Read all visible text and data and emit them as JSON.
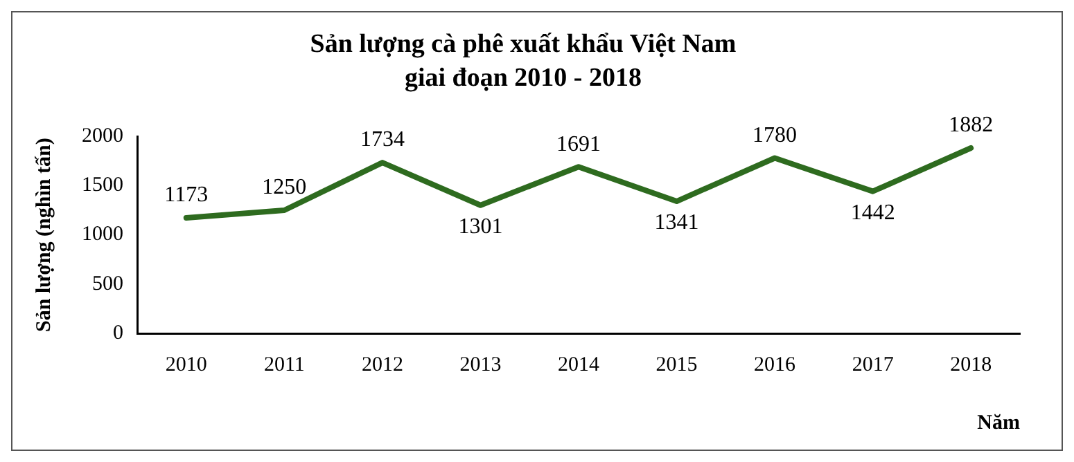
{
  "chart_data": {
    "type": "line",
    "title": "Sản lượng cà phê xuất khẩu Việt Nam",
    "subtitle": "giai đoạn 2010 - 2018",
    "xlabel": "Năm",
    "ylabel": "Sản lượng (nghìn tấn)",
    "categories": [
      "2010",
      "2011",
      "2012",
      "2013",
      "2014",
      "2015",
      "2016",
      "2017",
      "2018"
    ],
    "series": [
      {
        "color": "#2e6b1f",
        "values": [
          1173,
          1250,
          1734,
          1301,
          1691,
          1341,
          1780,
          1442,
          1882
        ]
      }
    ],
    "ylim": [
      0,
      2000
    ],
    "yticks": [
      0,
      500,
      1000,
      1500,
      2000
    ],
    "grid": false,
    "legend": false,
    "marker": "none",
    "line_style": "solid",
    "data_labels": true
  }
}
